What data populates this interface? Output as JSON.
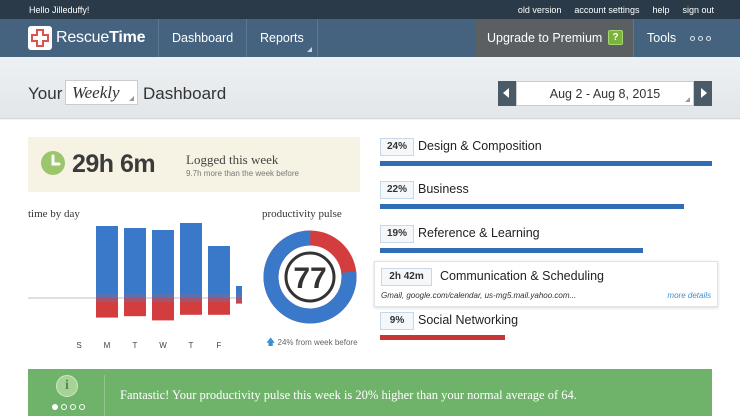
{
  "topbar": {
    "greeting": "Hello Jilleduffy!",
    "links": [
      "old version",
      "account settings",
      "help",
      "sign out"
    ]
  },
  "nav": {
    "brand_light": "Rescue",
    "brand_bold": "Time",
    "dashboard": "Dashboard",
    "reports": "Reports",
    "upgrade": "Upgrade to Premium",
    "upgrade_badge": "?",
    "tools": "Tools"
  },
  "header": {
    "prefix": "Your",
    "period": "Weekly",
    "suffix": "Dashboard",
    "date_range": "Aug 2 - Aug 8, 2015"
  },
  "summary": {
    "hours": "29h 6m",
    "label": "Logged this week",
    "comparison": "9.7h more than the week before"
  },
  "time_by_day": {
    "title": "time by day",
    "days": [
      "S",
      "M",
      "T",
      "W",
      "T",
      "F",
      "S"
    ],
    "productive": [
      0,
      72,
      70,
      68,
      75,
      52,
      12
    ],
    "distracting": [
      0,
      28,
      26,
      32,
      24,
      24,
      8
    ],
    "colors": {
      "productive": "#3a78c9",
      "distracting": "#d33d3d"
    }
  },
  "pulse": {
    "title": "productivity pulse",
    "score": "77",
    "score_value": 77,
    "footnote": "24% from week before",
    "colors": {
      "productive": "#3a78c9",
      "distracting": "#d33d3d"
    }
  },
  "categories": [
    {
      "pct": "24%",
      "name": "Design & Composition",
      "share": 0.24,
      "color": "#2f6db5"
    },
    {
      "pct": "22%",
      "name": "Business",
      "share": 0.22,
      "color": "#2f6db5"
    },
    {
      "pct": "19%",
      "name": "Reference & Learning",
      "share": 0.19,
      "color": "#2f6db5"
    },
    {
      "pct": "2h 42m",
      "name": "Communication & Scheduling",
      "detail": "Gmail, google.com/calendar, us-mg5.mail.yahoo.com...",
      "more": "more details"
    },
    {
      "pct": "9%",
      "name": "Social Networking",
      "share": 0.09,
      "color": "#c93535"
    }
  ],
  "banner": {
    "icon": "i",
    "message": "Fantastic! Your productivity pulse this week is 20% higher than your normal average of 64."
  }
}
